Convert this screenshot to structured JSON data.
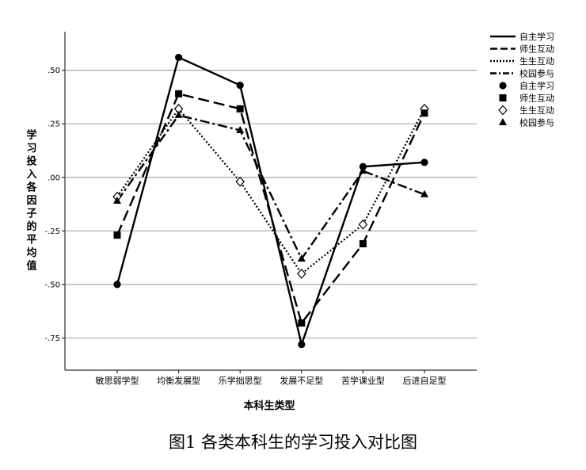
{
  "chart_data": {
    "type": "line",
    "categories": [
      "敏思弱学型",
      "均衡发展型",
      "乐学拙思型",
      "发展不足型",
      "苦学课业型",
      "后进自足型"
    ],
    "xlabel": "本科生类型",
    "ylabel": "学习投入各因子的平均值",
    "ylim": [
      -0.9,
      0.68
    ],
    "yticks": [
      0.5,
      0.25,
      0.0,
      -0.25,
      -0.5,
      -0.75
    ],
    "ytick_labels": [
      ".50",
      ".25",
      ".00",
      "-.25",
      "-.50",
      "-.75"
    ],
    "grid": true,
    "legend_position": "top-right",
    "series": [
      {
        "name": "自主学习",
        "line_style": "solid",
        "marker": "circle",
        "values": [
          -0.5,
          0.56,
          0.43,
          -0.78,
          0.05,
          0.07
        ]
      },
      {
        "name": "师生互动",
        "line_style": "dashed",
        "marker": "square",
        "values": [
          -0.27,
          0.39,
          0.32,
          -0.68,
          -0.31,
          0.3
        ]
      },
      {
        "name": "生生互动",
        "line_style": "dotted",
        "marker": "diamond",
        "values": [
          -0.09,
          0.32,
          -0.02,
          -0.45,
          -0.22,
          0.32
        ]
      },
      {
        "name": "校园参与",
        "line_style": "dashdot",
        "marker": "triangle",
        "values": [
          -0.11,
          0.29,
          0.22,
          -0.38,
          0.03,
          -0.08
        ]
      }
    ]
  },
  "caption": "图1  各类本科生的学习投入对比图"
}
